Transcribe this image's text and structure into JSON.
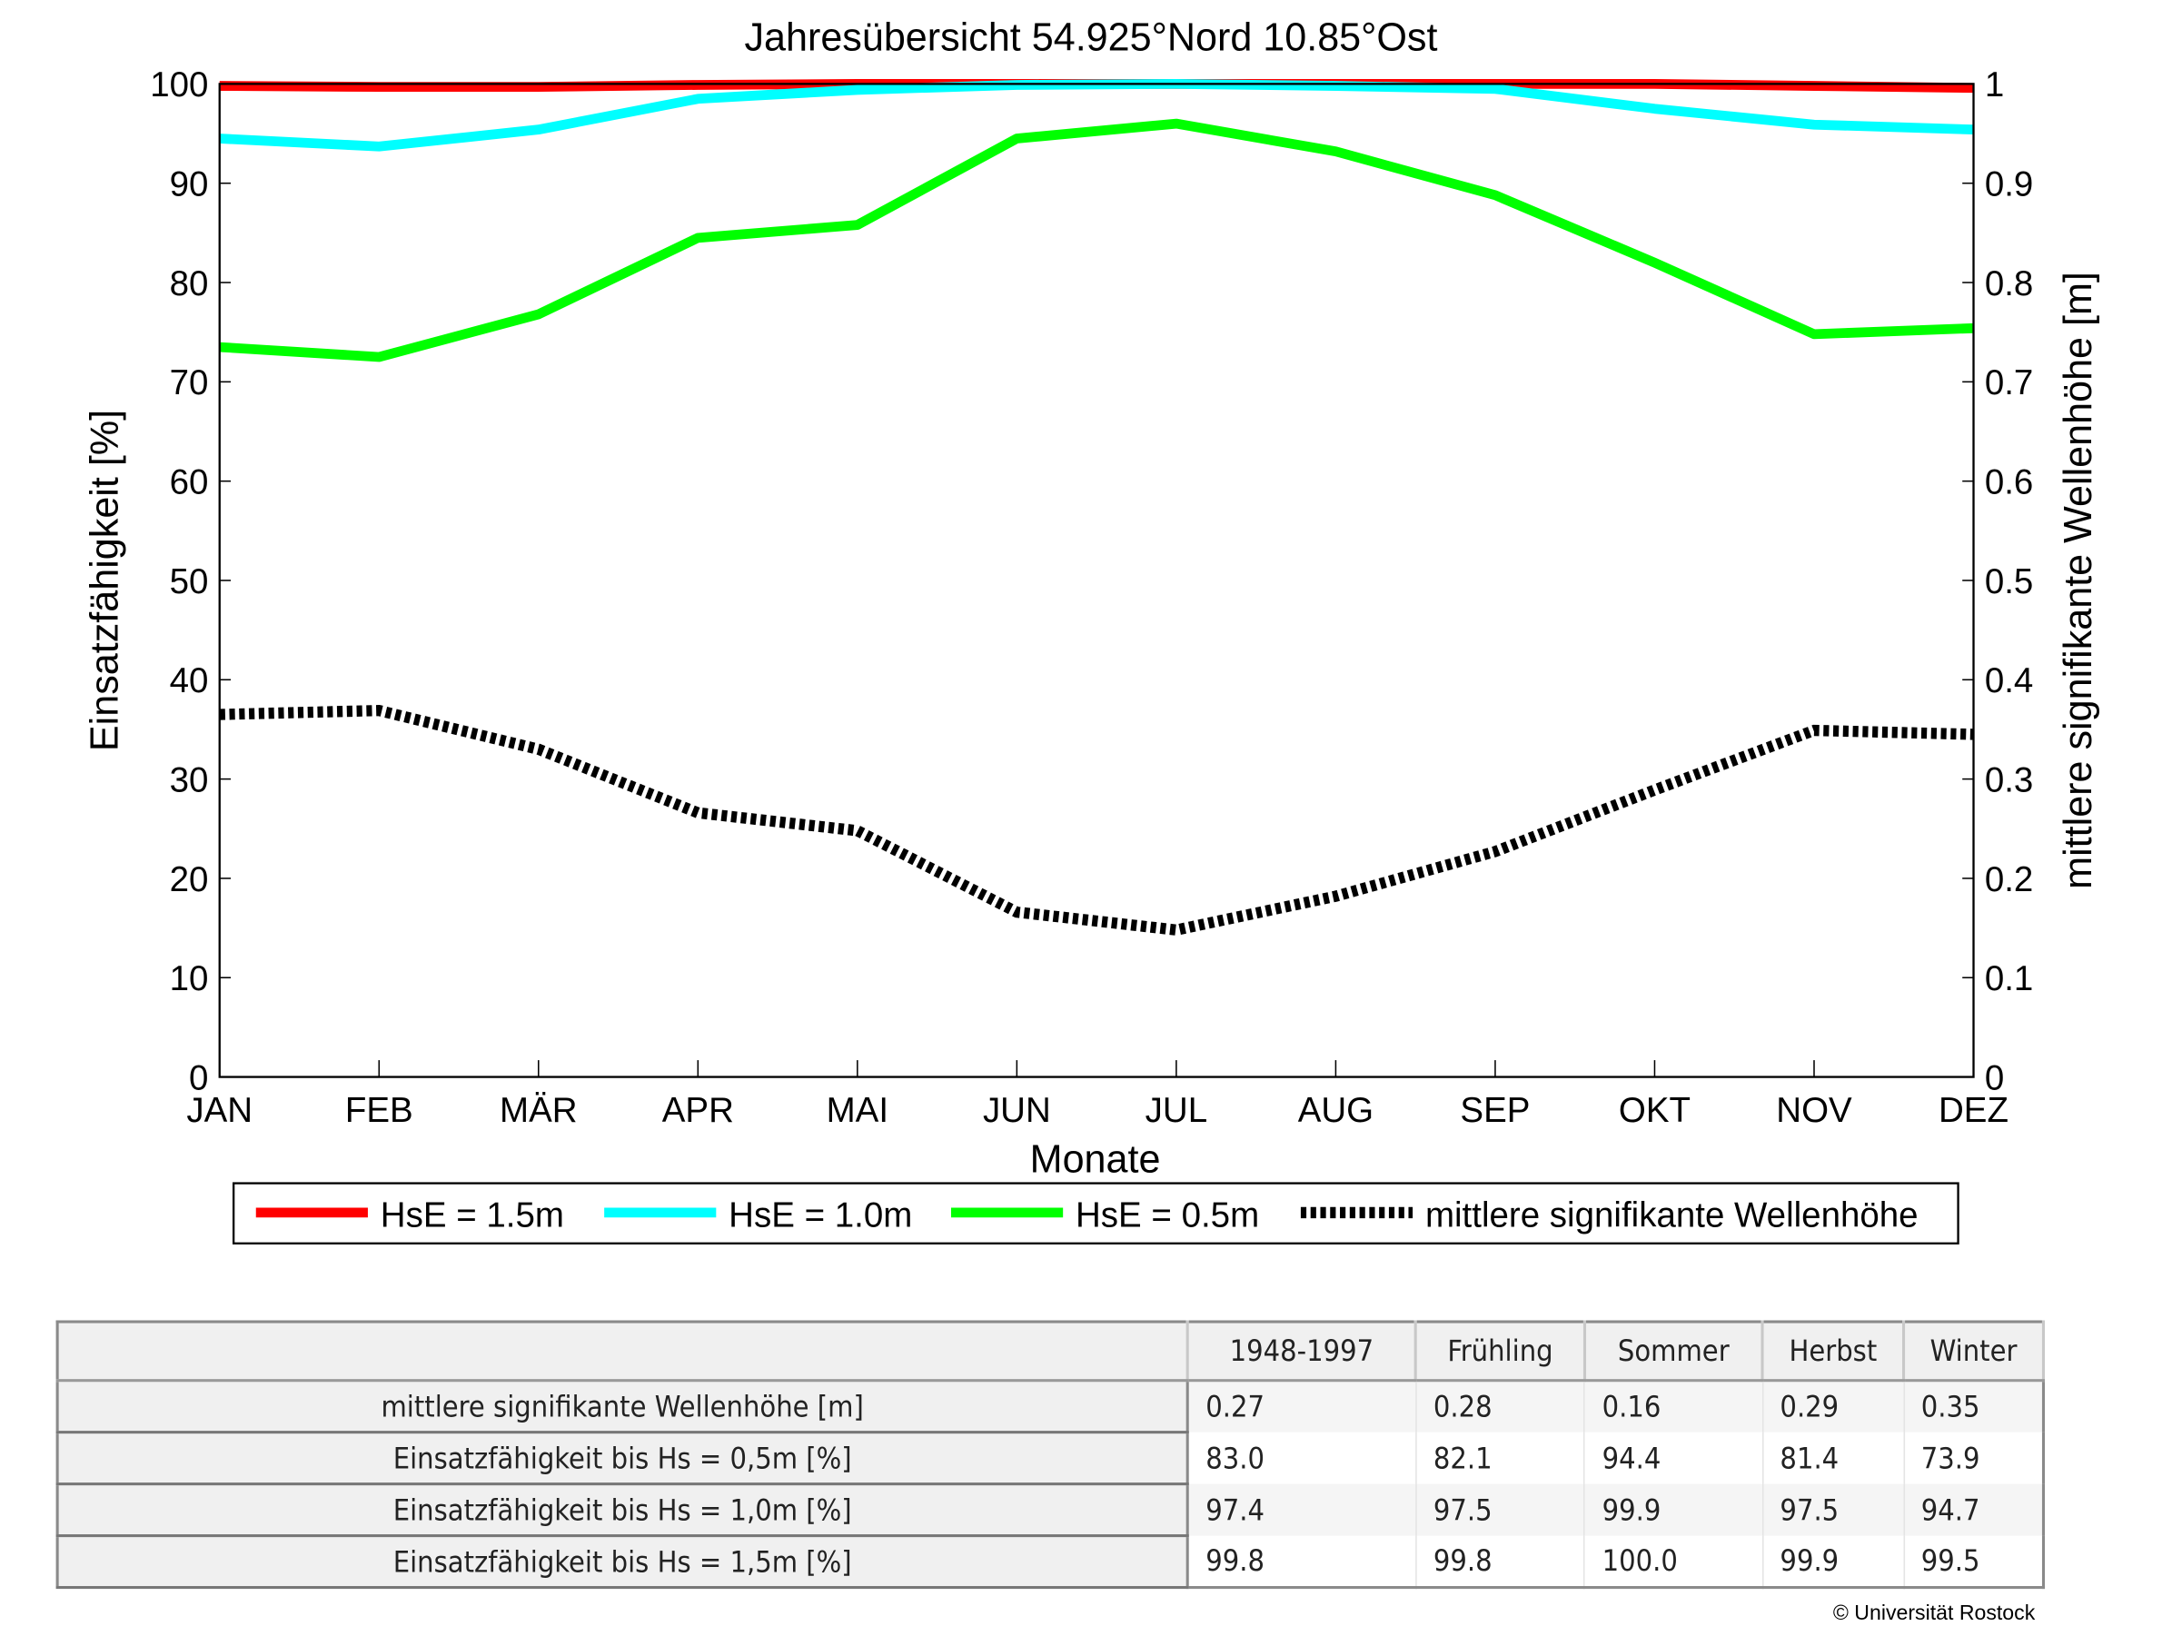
{
  "chart_data": {
    "type": "line",
    "title": "Jahresübersicht  54.925°Nord  10.85°Ost",
    "xlabel": "Monate",
    "ylabel": "Einsatzfähigkeit [%]",
    "ylabel_right": "mittlere signifikante Wellenhöhe [m]",
    "categories": [
      "JAN",
      "FEB",
      "MÄR",
      "APR",
      "MAI",
      "JUN",
      "JUL",
      "AUG",
      "SEP",
      "OKT",
      "NOV",
      "DEZ"
    ],
    "ylim": [
      0,
      100
    ],
    "ylim_right": [
      0,
      1
    ],
    "yticks": [
      "0",
      "10",
      "20",
      "30",
      "40",
      "50",
      "60",
      "70",
      "80",
      "90",
      "100"
    ],
    "yticks_right": [
      "0",
      "0.1",
      "0.2",
      "0.3",
      "0.4",
      "0.5",
      "0.6",
      "0.7",
      "0.8",
      "0.9",
      "1"
    ],
    "legend_placement": "bottom",
    "series": [
      {
        "name": "HsE = 1.5m",
        "color": "#ff0000",
        "axis": "left",
        "style": "solid",
        "values": [
          99.8,
          99.7,
          99.7,
          99.9,
          100,
          100,
          100,
          100,
          100,
          100,
          99.8,
          99.6
        ]
      },
      {
        "name": "HsE = 1.0m",
        "color": "#00ffff",
        "axis": "left",
        "style": "solid",
        "values": [
          94.5,
          93.7,
          95.4,
          98.5,
          99.4,
          99.9,
          100,
          99.8,
          99.5,
          97.5,
          95.9,
          95.4
        ]
      },
      {
        "name": "HsE = 0.5m",
        "color": "#00ff00",
        "axis": "left",
        "style": "solid",
        "values": [
          73.5,
          72.5,
          76.8,
          84.5,
          85.8,
          94.5,
          96.0,
          93.2,
          88.8,
          82.0,
          74.8,
          75.4
        ]
      },
      {
        "name": "mittlere signifikante Wellenhöhe",
        "color": "#000000",
        "axis": "right",
        "style": "dotted",
        "values": [
          0.365,
          0.369,
          0.33,
          0.266,
          0.248,
          0.166,
          0.148,
          0.182,
          0.227,
          0.289,
          0.349,
          0.345
        ]
      }
    ]
  },
  "table": {
    "headers": [
      "",
      "1948-1997",
      "Frühling",
      "Sommer",
      "Herbst",
      "Winter"
    ],
    "rows": [
      {
        "label": "mittlere signifikante Wellenhöhe [m]",
        "values": [
          "0.27",
          "0.28",
          "0.16",
          "0.29",
          "0.35"
        ]
      },
      {
        "label": "Einsatzfähigkeit bis Hs = 0,5m [%]",
        "values": [
          "83.0",
          "82.1",
          "94.4",
          "81.4",
          "73.9"
        ]
      },
      {
        "label": "Einsatzfähigkeit bis Hs = 1,0m [%]",
        "values": [
          "97.4",
          "97.5",
          "99.9",
          "97.5",
          "94.7"
        ]
      },
      {
        "label": "Einsatzfähigkeit bis Hs = 1,5m [%]",
        "values": [
          "99.8",
          "99.8",
          "100.0",
          "99.9",
          "99.5"
        ]
      }
    ]
  },
  "copyright": "© Universität Rostock"
}
